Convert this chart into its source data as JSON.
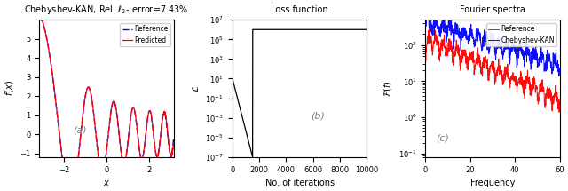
{
  "title_a": "Chebyshev-KAN, Rel. $\\ell_2$- error=7.43%",
  "title_b": "Loss function",
  "title_c": "Fourier spectra",
  "xlabel_a": "$x$",
  "ylabel_a": "$f(x)$",
  "xlabel_b": "No. of iterations",
  "ylabel_b": "$\\mathcal{L}$",
  "xlabel_c": "Frequency",
  "ylabel_c": "$\\mathcal{F}(f)$",
  "label_a": "(a)",
  "label_b": "(b)",
  "label_c": "(c)",
  "color_predicted": "red",
  "color_reference": "blue",
  "color_loss": "black",
  "color_fourier_ref": "red",
  "color_fourier_kan": "blue",
  "yticks_a": [
    -1,
    0,
    1,
    2,
    3,
    4,
    5
  ],
  "xticks_a": [
    -2,
    0,
    2
  ],
  "xticks_b": [
    0,
    2000,
    4000,
    6000,
    8000,
    10000
  ],
  "xticks_c": [
    0,
    20,
    40,
    60
  ],
  "xlim_a": [
    -3.15,
    3.15
  ],
  "ylim_a": [
    -1.2,
    6.0
  ],
  "xlim_b": [
    0,
    10000
  ],
  "xlim_c": [
    0,
    60
  ]
}
